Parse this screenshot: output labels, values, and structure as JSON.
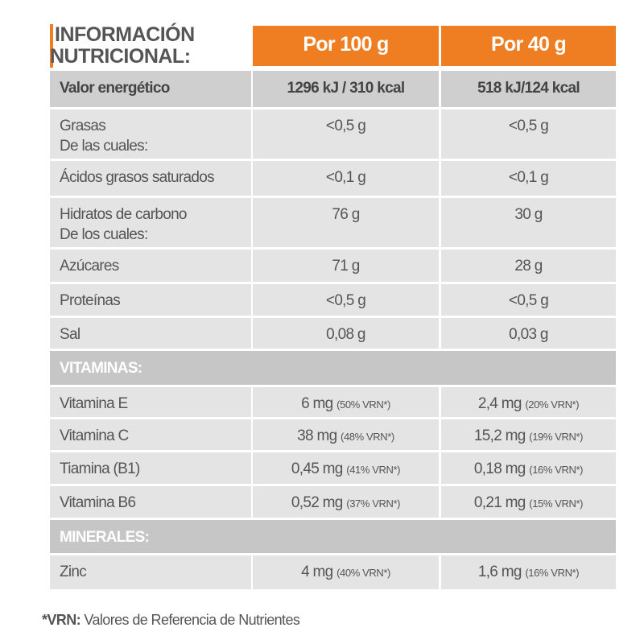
{
  "header": {
    "title": [
      "INFORMACIÓN",
      "NUTRICIONAL:"
    ],
    "columns": [
      "Por 100 g",
      "Por 40 g"
    ]
  },
  "table": {
    "rows": [
      {
        "label": [
          "Valor energético"
        ],
        "per100": {
          "amount": "1296 kJ / 310 kcal"
        },
        "per40": {
          "amount": "518 kJ/124 kcal"
        }
      },
      {
        "label": [
          "Grasas",
          "De las cuales:"
        ],
        "per100": {
          "amount": "<0,5 g"
        },
        "per40": {
          "amount": "<0,5 g"
        }
      },
      {
        "label": [
          "Ácidos grasos saturados"
        ],
        "per100": {
          "amount": "<0,1 g"
        },
        "per40": {
          "amount": "<0,1 g"
        }
      },
      {
        "label": [
          "Hidratos de carbono",
          "De los cuales:"
        ],
        "per100": {
          "amount": "76 g"
        },
        "per40": {
          "amount": "30 g"
        }
      },
      {
        "label": [
          "Azúcares"
        ],
        "per100": {
          "amount": "71 g"
        },
        "per40": {
          "amount": "28 g"
        }
      },
      {
        "label": [
          "Proteínas"
        ],
        "per100": {
          "amount": "<0,5 g"
        },
        "per40": {
          "amount": "<0,5 g"
        }
      },
      {
        "label": [
          "Sal"
        ],
        "per100": {
          "amount": "0,08 g"
        },
        "per40": {
          "amount": "0,03 g"
        }
      },
      {
        "section": "VITAMINAS:"
      },
      {
        "label": [
          "Vitamina E"
        ],
        "per100": {
          "amount": "6 mg",
          "vrn": "(50% VRN*)"
        },
        "per40": {
          "amount": "2,4 mg",
          "vrn": "(20% VRN*)"
        }
      },
      {
        "label": [
          "Vitamina C"
        ],
        "per100": {
          "amount": "38 mg",
          "vrn": "(48% VRN*)"
        },
        "per40": {
          "amount": "15,2 mg",
          "vrn": "(19% VRN*)"
        }
      },
      {
        "label": [
          "Tiamina (B1)"
        ],
        "per100": {
          "amount": "0,45 mg",
          "vrn": "(41% VRN*)"
        },
        "per40": {
          "amount": "0,18 mg",
          "vrn": "(16% VRN*)"
        }
      },
      {
        "label": [
          "Vitamina B6"
        ],
        "per100": {
          "amount": "0,52 mg",
          "vrn": "(37% VRN*)"
        },
        "per40": {
          "amount": "0,21 mg",
          "vrn": "(15% VRN*)"
        }
      },
      {
        "section": "MINERALES:"
      },
      {
        "label": [
          "Zinc"
        ],
        "per100": {
          "amount": "4 mg",
          "vrn": "(40% VRN*)"
        },
        "per40": {
          "amount": "1,6 mg",
          "vrn": "(16% VRN*)"
        }
      }
    ]
  },
  "footer": {
    "key": "*VRN:",
    "text": "Valores de Referencia de Nutrientes"
  }
}
